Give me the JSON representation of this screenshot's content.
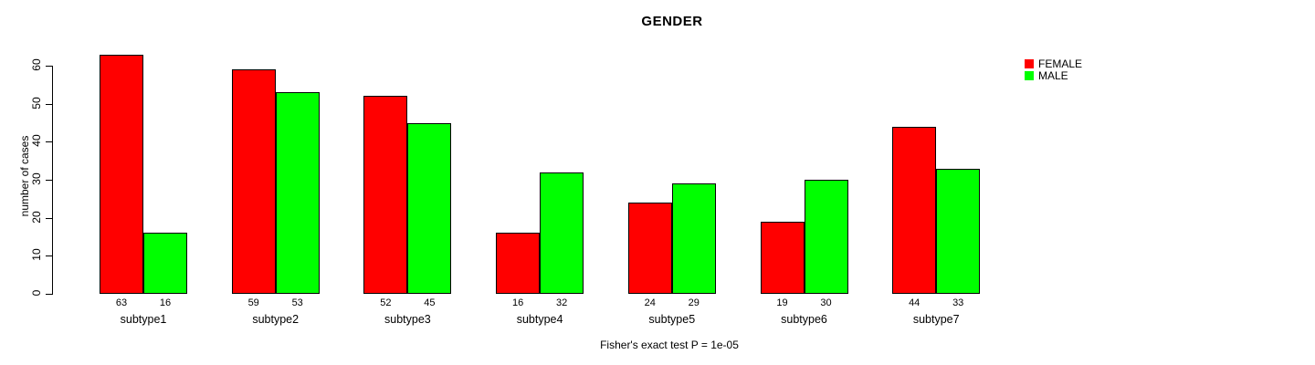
{
  "chart_data": {
    "type": "bar",
    "grouped": true,
    "title": "GENDER",
    "ylabel": "number of cases",
    "xlabel": "",
    "ylim": [
      0,
      60
    ],
    "yticks": [
      0,
      10,
      20,
      30,
      40,
      50,
      60
    ],
    "grid": false,
    "legend_position": "top-right-outside-plot",
    "categories": [
      "subtype1",
      "subtype2",
      "subtype3",
      "subtype4",
      "subtype5",
      "subtype6",
      "subtype7"
    ],
    "series": [
      {
        "name": "FEMALE",
        "color": "#ff0000",
        "values": [
          63,
          59,
          52,
          16,
          24,
          19,
          44
        ]
      },
      {
        "name": "MALE",
        "color": "#00ff00",
        "values": [
          16,
          53,
          45,
          32,
          29,
          30,
          33
        ]
      }
    ],
    "bar_value_labels_shown": true,
    "footer": "Fisher's exact test P = 1e-05"
  },
  "colors": {
    "female": "#ff0000",
    "male": "#00ff00",
    "axis": "#000000",
    "background": "#ffffff"
  }
}
